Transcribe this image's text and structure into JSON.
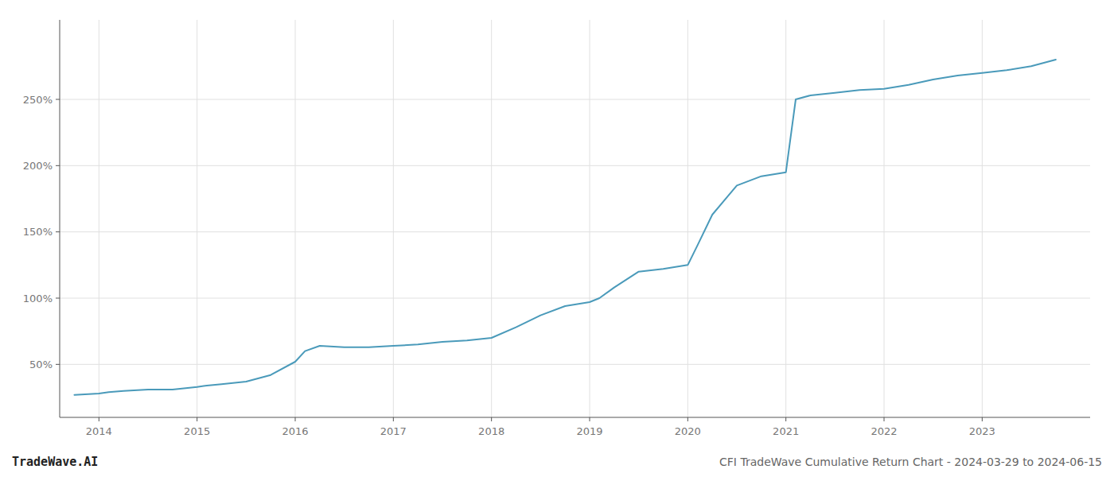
{
  "chart_data": {
    "type": "line",
    "title": "CFI TradeWave Cumulative Return Chart - 2024-03-29 to 2024-06-15",
    "annotations": [
      "TradeWave.AI"
    ],
    "color": "#4a9aba",
    "grid": true,
    "x": [
      2013.75,
      2014.0,
      2014.1,
      2014.25,
      2014.5,
      2014.75,
      2015.0,
      2015.1,
      2015.25,
      2015.5,
      2015.75,
      2016.0,
      2016.1,
      2016.25,
      2016.5,
      2016.75,
      2017.0,
      2017.25,
      2017.5,
      2017.75,
      2018.0,
      2018.25,
      2018.5,
      2018.75,
      2019.0,
      2019.1,
      2019.25,
      2019.5,
      2019.75,
      2020.0,
      2020.1,
      2020.25,
      2020.5,
      2020.75,
      2021.0,
      2021.1,
      2021.25,
      2021.5,
      2021.75,
      2022.0,
      2022.25,
      2022.5,
      2022.75,
      2023.0,
      2023.25,
      2023.5,
      2023.75
    ],
    "values": [
      27,
      28,
      29,
      30,
      31,
      31,
      33,
      34,
      35,
      37,
      42,
      52,
      60,
      64,
      63,
      63,
      64,
      65,
      67,
      68,
      70,
      78,
      87,
      94,
      97,
      100,
      108,
      120,
      122,
      125,
      140,
      163,
      185,
      192,
      195,
      250,
      253,
      255,
      257,
      258,
      261,
      265,
      268,
      270,
      272,
      275,
      280
    ],
    "xlim": [
      2013.6,
      2024.1
    ],
    "xticks": [
      2014,
      2015,
      2016,
      2017,
      2018,
      2019,
      2020,
      2021,
      2022,
      2023
    ],
    "ylim": [
      10,
      310
    ],
    "yticks": [
      {
        "value": 50,
        "label": "50%"
      },
      {
        "value": 100,
        "label": "100%"
      },
      {
        "value": 150,
        "label": "150%"
      },
      {
        "value": 200,
        "label": "200%"
      },
      {
        "value": 250,
        "label": "250%"
      }
    ]
  }
}
